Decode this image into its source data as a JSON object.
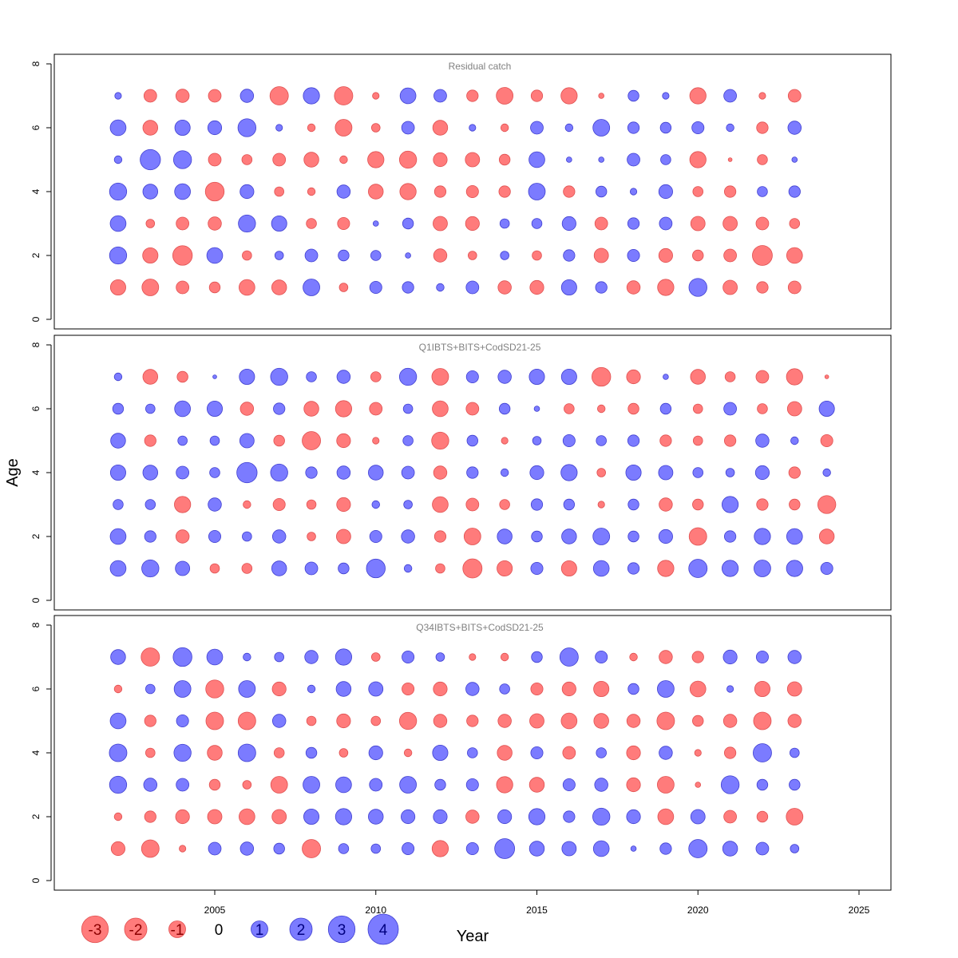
{
  "chart_data": {
    "type": "scatter",
    "subtype": "bubble residual plot",
    "xlabel": "Year",
    "ylabel": "Age",
    "x_ticks": [
      2005,
      2010,
      2015,
      2020,
      2025
    ],
    "y_ticks": [
      0,
      2,
      4,
      6,
      8
    ],
    "xlim": [
      2000.5,
      2026
    ],
    "ylim": [
      0,
      8
    ],
    "colors": {
      "positive": "#7b7bff",
      "negative": "#ff7b7b",
      "positive_edge": "#3f3fd0",
      "negative_edge": "#e05050"
    },
    "legend": {
      "placement": "bottom-left",
      "items": [
        {
          "label": "-3",
          "value": -3
        },
        {
          "label": "-2",
          "value": -2
        },
        {
          "label": "-1",
          "value": -1
        },
        {
          "label": "0",
          "value": 0
        },
        {
          "label": "1",
          "value": 1
        },
        {
          "label": "2",
          "value": 2
        },
        {
          "label": "3",
          "value": 3
        },
        {
          "label": "4",
          "value": 4
        }
      ]
    },
    "panels": [
      {
        "title": "Residual catch",
        "years": [
          2002,
          2003,
          2004,
          2005,
          2006,
          2007,
          2008,
          2009,
          2010,
          2011,
          2012,
          2013,
          2014,
          2015,
          2016,
          2017,
          2018,
          2019,
          2020,
          2021,
          2022,
          2023
        ],
        "residuals": {
          "7": [
            0.3,
            -1.1,
            -1.2,
            -1.1,
            1.2,
            -2.3,
            1.8,
            -2.3,
            -0.3,
            1.7,
            1.1,
            -0.9,
            -1.9,
            -0.9,
            -1.8,
            -0.2,
            0.8,
            0.3,
            -1.8,
            1.1,
            -0.3,
            -1.1
          ],
          "6": [
            1.7,
            -1.5,
            1.6,
            1.3,
            2.2,
            0.3,
            -0.4,
            -1.9,
            -0.5,
            1.1,
            -1.5,
            0.3,
            -0.4,
            1.1,
            0.4,
            1.9,
            0.9,
            0.8,
            1.0,
            0.4,
            -0.9,
            1.2
          ],
          "5": [
            0.4,
            2.8,
            2.2,
            -1.1,
            -0.7,
            -1.1,
            -1.5,
            -0.4,
            -1.8,
            -2.0,
            -1.3,
            -1.4,
            -0.8,
            1.7,
            0.2,
            0.2,
            1.1,
            0.7,
            -1.8,
            -0.1,
            -0.7,
            0.2
          ],
          "4": [
            2.0,
            1.5,
            1.7,
            -2.4,
            1.3,
            -0.6,
            -0.4,
            1.2,
            -1.5,
            -1.8,
            -0.9,
            -1.0,
            -0.9,
            1.9,
            -0.9,
            0.8,
            0.3,
            1.3,
            -0.7,
            -0.9,
            0.7,
            0.9
          ],
          "3": [
            1.7,
            -0.5,
            -1.1,
            -1.2,
            2.0,
            1.6,
            -0.7,
            -1.0,
            0.2,
            0.8,
            -1.4,
            -1.3,
            0.6,
            0.7,
            1.3,
            -1.1,
            0.9,
            1.1,
            -1.4,
            -1.4,
            -1.1,
            -0.7
          ],
          "2": [
            2.0,
            -1.6,
            -2.6,
            1.7,
            -0.6,
            0.5,
            1.1,
            0.8,
            0.7,
            0.2,
            -1.2,
            -0.5,
            0.5,
            -0.6,
            0.9,
            -1.4,
            1.0,
            -1.3,
            -0.8,
            -1.1,
            -2.7,
            -1.7
          ],
          "1": [
            -1.6,
            -1.9,
            -1.1,
            -0.8,
            -1.7,
            -1.5,
            1.9,
            -0.5,
            1.0,
            0.9,
            0.4,
            1.1,
            -1.2,
            -1.3,
            1.6,
            0.9,
            -1.2,
            -1.8,
            2.2,
            -1.4,
            -0.9,
            -1.1
          ]
        }
      },
      {
        "title": "Q1IBTS+BITS+CodSD21-25",
        "years": [
          2002,
          2003,
          2004,
          2005,
          2006,
          2007,
          2008,
          2009,
          2010,
          2011,
          2012,
          2013,
          2014,
          2015,
          2016,
          2017,
          2018,
          2019,
          2020,
          2021,
          2022,
          2023,
          2024
        ],
        "residuals": {
          "7": [
            0.4,
            -1.5,
            -0.8,
            0.1,
            1.6,
            2.0,
            0.7,
            1.2,
            -0.7,
            2.0,
            -1.9,
            1.0,
            1.2,
            1.6,
            1.6,
            -2.4,
            -1.3,
            0.2,
            -1.5,
            -0.7,
            -1.1,
            -1.8,
            -0.1
          ],
          "6": [
            0.8,
            0.6,
            1.7,
            1.6,
            -1.2,
            0.9,
            -1.5,
            -1.8,
            -1.1,
            0.6,
            -1.7,
            -1.1,
            0.8,
            0.2,
            -0.7,
            -0.4,
            -0.8,
            0.8,
            -0.6,
            1.1,
            -0.7,
            -1.4,
            1.6
          ],
          "5": [
            1.5,
            -0.9,
            0.6,
            0.6,
            1.4,
            -0.8,
            -2.3,
            -1.3,
            -0.3,
            0.7,
            -2.0,
            0.8,
            -0.3,
            0.5,
            1.0,
            0.7,
            0.9,
            -0.9,
            -0.6,
            -0.9,
            1.2,
            0.4,
            -1.0
          ],
          "4": [
            1.6,
            1.5,
            1.1,
            0.7,
            2.8,
            2.0,
            0.9,
            1.2,
            1.5,
            1.1,
            -1.2,
            0.9,
            0.4,
            1.3,
            1.8,
            -0.5,
            1.6,
            1.4,
            0.7,
            0.5,
            1.3,
            -0.9,
            0.4
          ],
          "3": [
            0.7,
            0.7,
            -1.8,
            1.2,
            -0.4,
            -1.0,
            -0.6,
            -1.3,
            0.4,
            0.5,
            -1.7,
            -1.1,
            -0.7,
            0.9,
            0.8,
            -0.3,
            0.8,
            -1.2,
            -0.8,
            1.8,
            -0.9,
            -0.8,
            -2.2
          ],
          "2": [
            1.7,
            0.9,
            -1.2,
            1.0,
            0.6,
            1.2,
            -0.5,
            -1.4,
            1.0,
            1.2,
            -0.9,
            -1.9,
            1.5,
            0.8,
            1.5,
            1.9,
            0.8,
            1.3,
            -2.1,
            0.9,
            1.8,
            1.7,
            -1.5
          ],
          "1": [
            1.7,
            2.0,
            1.4,
            -0.6,
            -0.7,
            1.5,
            1.1,
            0.8,
            2.4,
            0.4,
            -0.6,
            -2.5,
            -1.6,
            1.0,
            -1.6,
            1.7,
            0.9,
            -1.8,
            2.3,
            1.8,
            1.9,
            1.8,
            1.0
          ]
        }
      },
      {
        "title": "Q34IBTS+BITS+CodSD21-25",
        "years": [
          2002,
          2003,
          2004,
          2005,
          2006,
          2007,
          2008,
          2009,
          2010,
          2011,
          2012,
          2013,
          2014,
          2015,
          2016,
          2017,
          2018,
          2019,
          2020,
          2021,
          2022,
          2023
        ],
        "residuals": {
          "7": [
            1.5,
            -2.3,
            2.4,
            1.7,
            0.4,
            0.6,
            1.2,
            1.8,
            -0.5,
            1.0,
            0.5,
            -0.3,
            -0.4,
            0.8,
            2.3,
            1.0,
            -0.4,
            -1.2,
            -0.9,
            1.3,
            1.0,
            1.2
          ],
          "6": [
            -0.4,
            0.6,
            1.9,
            -2.2,
            1.9,
            -1.3,
            0.4,
            1.5,
            1.4,
            -1.0,
            -1.3,
            1.2,
            0.7,
            -1.0,
            -1.3,
            -1.6,
            0.8,
            1.9,
            -1.7,
            0.3,
            -1.6,
            -1.4
          ],
          "5": [
            1.7,
            -0.9,
            1.0,
            -2.1,
            -2.1,
            1.2,
            -0.6,
            -1.3,
            -0.6,
            -2.0,
            -1.2,
            -0.9,
            -1.2,
            -1.4,
            -1.7,
            -1.5,
            -1.2,
            -2.1,
            -0.8,
            -1.2,
            -2.1,
            -1.2
          ],
          "4": [
            2.1,
            -0.6,
            2.0,
            -1.5,
            2.1,
            -0.7,
            0.8,
            -0.5,
            1.3,
            -0.4,
            1.6,
            0.7,
            -1.5,
            1.0,
            -1.1,
            0.7,
            -1.3,
            1.2,
            -0.3,
            -0.9,
            2.3,
            0.6
          ],
          "3": [
            2.0,
            1.2,
            1.1,
            -0.8,
            -0.5,
            -1.9,
            1.9,
            1.7,
            1.1,
            1.9,
            0.8,
            1.0,
            -1.8,
            -1.5,
            1.0,
            1.2,
            -1.3,
            -1.9,
            -0.2,
            2.2,
            0.8,
            0.8
          ],
          "2": [
            -0.4,
            -0.9,
            -1.3,
            -1.4,
            -1.7,
            -1.4,
            1.6,
            1.8,
            1.5,
            1.3,
            1.3,
            -1.2,
            1.3,
            1.8,
            0.9,
            2.0,
            1.3,
            -1.7,
            1.4,
            -1.1,
            -0.8,
            -1.9
          ],
          "1": [
            -1.3,
            -2.1,
            -0.3,
            1.1,
            1.2,
            0.8,
            -2.3,
            0.7,
            0.6,
            1.0,
            -1.8,
            1.0,
            2.7,
            1.5,
            1.4,
            1.7,
            0.2,
            0.9,
            2.3,
            1.5,
            1.1,
            0.5
          ]
        }
      }
    ]
  }
}
